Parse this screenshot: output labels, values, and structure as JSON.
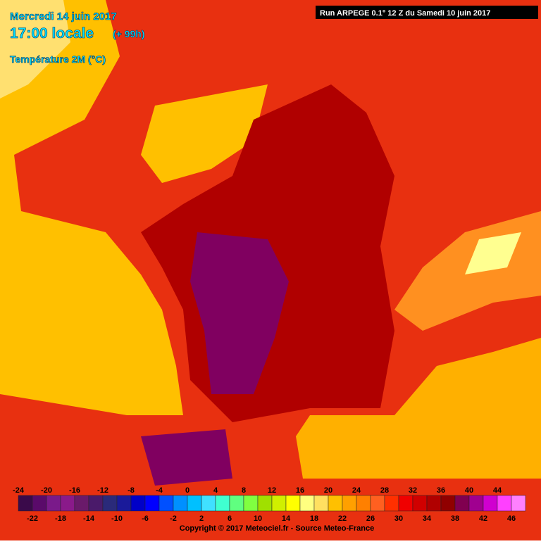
{
  "header": {
    "date": "Mercredi 14 juin 2017",
    "time": "17:00 locale",
    "lead": "(+ 99h)",
    "field": "Température 2M (°C)",
    "run": "Run ARPEGE 0.1° 12 Z du Samedi 10 juin 2017"
  },
  "legend": {
    "values": [
      -24,
      -22,
      -20,
      -18,
      -16,
      -14,
      -12,
      -10,
      -8,
      -6,
      -4,
      -2,
      0,
      2,
      4,
      6,
      8,
      10,
      12,
      14,
      16,
      18,
      20,
      22,
      24,
      26,
      28,
      30,
      32,
      34,
      36,
      38,
      40,
      42,
      44,
      46
    ],
    "colors": [
      "#3a0a4a",
      "#5a0a6a",
      "#7a1a8a",
      "#8a1a8a",
      "#6a1a6a",
      "#4a1a6a",
      "#2a2a7a",
      "#1a1a9a",
      "#0000c8",
      "#0000ff",
      "#0050ff",
      "#0090ff",
      "#00c0ff",
      "#40e0ff",
      "#40ffd0",
      "#60ff80",
      "#80ff40",
      "#a0e000",
      "#d0f000",
      "#ffff00",
      "#ffff80",
      "#ffe060",
      "#ffc000",
      "#ffa000",
      "#ff8000",
      "#ff6020",
      "#ff3000",
      "#f00000",
      "#d00000",
      "#b00000",
      "#900000",
      "#800050",
      "#a00090",
      "#d000d0",
      "#ff40ff",
      "#ff80ff"
    ]
  },
  "footer": {
    "copyright": "Copyright © 2017 Meteociel.fr - Source Meteo-France"
  }
}
